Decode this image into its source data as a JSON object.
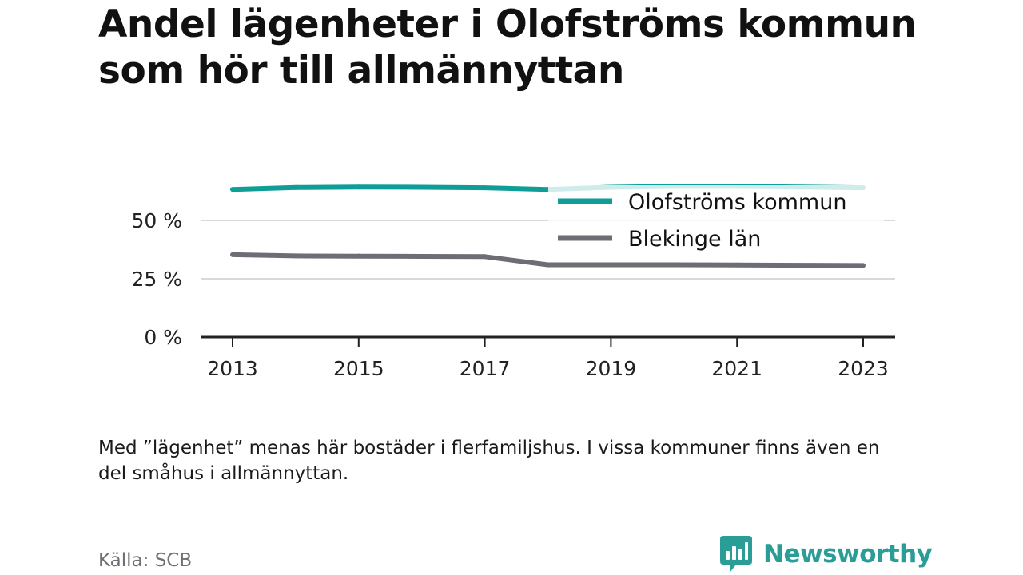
{
  "title": "Andel lägenheter i Olofströms kommun som hör till allmännyttan",
  "note": "Med ”lägenhet” menas här bostäder i flerfamiljshus. I vissa kommuner finns även en del småhus i allmännyttan.",
  "source": "Källa: SCB",
  "brand": {
    "name": "Newsworthy",
    "icon": "newsworthy-logo-icon",
    "color": "#2a9d97"
  },
  "chart_data": {
    "type": "line",
    "title": "Andel lägenheter i Olofströms kommun som hör till allmännyttan",
    "xlabel": "",
    "ylabel": "",
    "x": [
      2013,
      2014,
      2015,
      2016,
      2017,
      2018,
      2019,
      2020,
      2021,
      2022,
      2023
    ],
    "xticks": [
      "2013",
      "2015",
      "2017",
      "2019",
      "2021",
      "2023"
    ],
    "yticks": [
      "0 %",
      "25 %",
      "50 %"
    ],
    "ylim": [
      0,
      65
    ],
    "grid": true,
    "legend_position": "top-right",
    "series": [
      {
        "name": "Olofströms kommun",
        "color": "#0f9e97",
        "values": [
          63.3,
          64.1,
          64.3,
          64.2,
          64.0,
          63.3,
          64.2,
          64.6,
          64.6,
          64.3,
          64.0
        ]
      },
      {
        "name": "Blekinge län",
        "color": "#6e6d76",
        "values": [
          35.3,
          34.8,
          34.7,
          34.6,
          34.5,
          31.0,
          31.0,
          31.0,
          30.9,
          30.8,
          30.7
        ]
      }
    ]
  }
}
